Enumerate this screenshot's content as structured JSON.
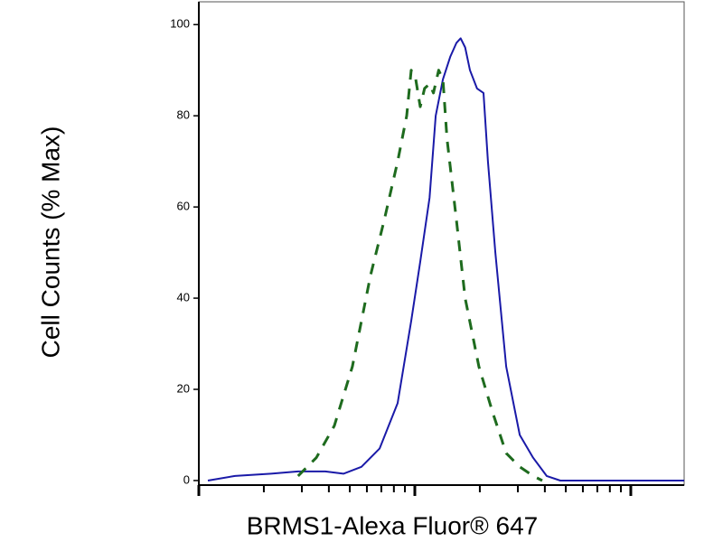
{
  "chart_data": {
    "type": "line",
    "x_label": "BRMS1-Alexa Fluor® 647",
    "y_label": "Cell Counts (% Max)",
    "x_scale": "log",
    "xlim": [
      1,
      176.6
    ],
    "xticks": [
      1,
      10,
      100
    ],
    "xminorticks": [
      2,
      3,
      4,
      5,
      6,
      7,
      8,
      9,
      20,
      30,
      40,
      50,
      60,
      70,
      80,
      90
    ],
    "ylim": [
      -1,
      105
    ],
    "yticks": [
      0,
      20,
      40,
      60,
      80,
      100
    ],
    "grid": false,
    "series": [
      {
        "color": "#1a1aa8",
        "dash": false,
        "x": [
          1.101,
          1.47,
          2.16,
          2.88,
          3.85,
          4.67,
          5.66,
          6.87,
          8.33,
          9.62,
          10.6,
          11.7,
          12.5,
          13.5,
          14.6,
          15.6,
          16.3,
          17.1,
          18.0,
          19.4,
          20.8,
          21.8,
          23.6,
          26.5,
          30.6,
          35.3,
          40.8,
          47.2,
          102,
          176.6
        ],
        "values": [
          0,
          1,
          1.5,
          2,
          2,
          1.5,
          3,
          7,
          17,
          35,
          48,
          62,
          80,
          88,
          93,
          96,
          97,
          95,
          90,
          86,
          85,
          70,
          50,
          25,
          10,
          5,
          1,
          0,
          0,
          0
        ]
      },
      {
        "color": "#1e6b1e",
        "dash": true,
        "x": [
          2.88,
          3.5,
          4.24,
          5.14,
          6.24,
          7.21,
          8.33,
          9.17,
          9.62,
          10.1,
          10.6,
          11.1,
          11.7,
          12.2,
          12.9,
          13.5,
          14.1,
          15.6,
          17.1,
          19.8,
          22.9,
          26.5,
          30.6,
          35.3,
          38.9
        ],
        "values": [
          1,
          5,
          12,
          25,
          45,
          57,
          70,
          80,
          90,
          88,
          82,
          86,
          87,
          85,
          90,
          88,
          75,
          57,
          40,
          25,
          15,
          6,
          3,
          1,
          0
        ]
      }
    ]
  }
}
